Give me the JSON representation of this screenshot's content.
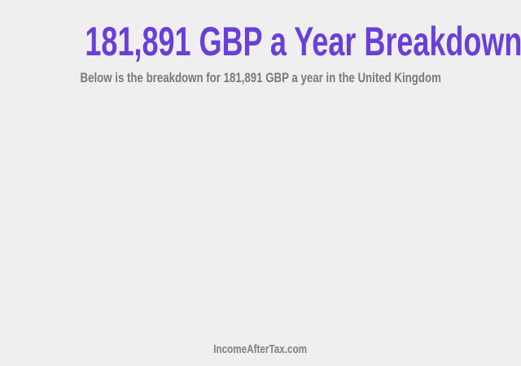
{
  "header": {
    "title": "181,891 GBP a Year Breakdown",
    "subtitle": "Below is the breakdown for 181,891 GBP a year in the United Kingdom"
  },
  "footer": {
    "site": "IncomeAfterTax.com"
  },
  "colors": {
    "title": "#6a3fd9",
    "subtitle": "#7a7a7a",
    "background": "#efefef"
  }
}
